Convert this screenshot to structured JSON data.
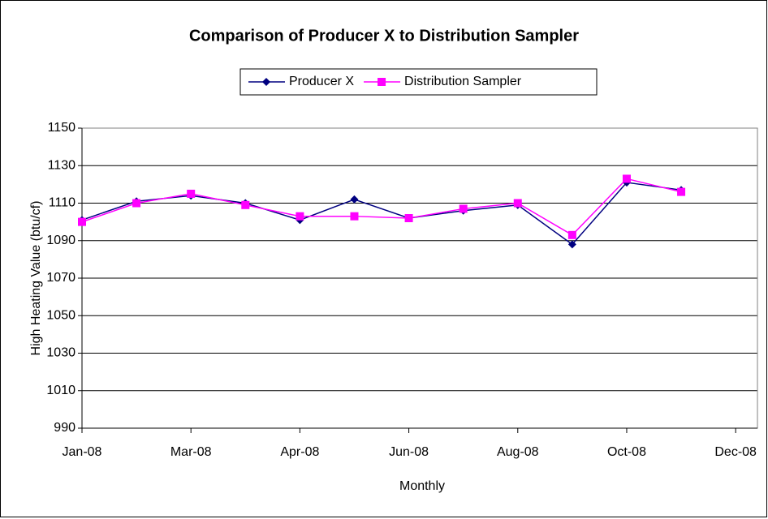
{
  "chart_data": {
    "type": "line",
    "title": "Comparison of Producer X to Distribution Sampler",
    "x_label": "Monthly",
    "y_label": "High Heating Value (btu/cf)",
    "x": [
      0,
      1,
      2,
      3,
      4,
      5,
      6,
      7,
      8,
      9,
      10,
      11
    ],
    "series": [
      {
        "name": "Producer X",
        "color": "#000080",
        "marker": "diamond",
        "values": [
          1101,
          1111,
          1114,
          1110,
          1101,
          1112,
          1102,
          1106,
          1109,
          1088,
          1121,
          1117
        ]
      },
      {
        "name": "Distribution Sampler",
        "color": "#ff00ff",
        "marker": "square",
        "values": [
          1100,
          1110,
          1115,
          1109,
          1103,
          1103,
          1102,
          1107,
          1110,
          1093,
          1123,
          1116
        ]
      }
    ],
    "xlim": [
      0,
      12.4
    ],
    "xticks": [
      {
        "value": 0,
        "label": "Jan-08"
      },
      {
        "value": 2,
        "label": "Mar-08"
      },
      {
        "value": 4,
        "label": "Apr-08"
      },
      {
        "value": 6,
        "label": "Jun-08"
      },
      {
        "value": 8,
        "label": "Aug-08"
      },
      {
        "value": 10,
        "label": "Oct-08"
      },
      {
        "value": 12,
        "label": "Dec-08"
      }
    ],
    "ylim": [
      990,
      1150
    ],
    "yticks": [
      990,
      1010,
      1030,
      1050,
      1070,
      1090,
      1110,
      1130,
      1150
    ],
    "grid": true,
    "legend": "top"
  }
}
